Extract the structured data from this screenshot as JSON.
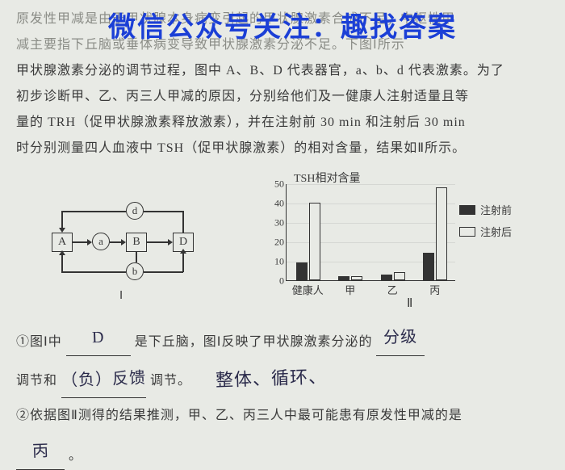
{
  "overlay": "微信公众号关注：趣找答案",
  "paragraph": {
    "l1": "原发性甲减是由于甲状腺本身病变引起的甲状腺激素合成不足；中枢性甲",
    "l2": "减主要指下丘脑或垂体病变导致甲状腺激素分泌不足。下图Ⅰ所示",
    "l3": "甲状腺激素分泌的调节过程，图中 A、B、D 代表器官，a、b、d 代表激素。为了",
    "l4": "初步诊断甲、乙、丙三人甲减的原因，分别给他们及一健康人注射适量且等",
    "l5": "量的 TRH（促甲状腺激素释放激素），并在注射前 30 min 和注射后 30 min",
    "l6": "时分别测量四人血液中 TSH（促甲状腺激素）的相对含量，结果如Ⅱ所示。"
  },
  "diagram": {
    "nodes": {
      "A": "A",
      "B": "B",
      "D": "D"
    },
    "circles": {
      "a": "a",
      "b": "b",
      "d": "d"
    },
    "roman": "Ⅰ"
  },
  "chart": {
    "title": "TSH相对含量",
    "ylim": [
      0,
      50
    ],
    "ytick_step": 10,
    "yticks": [
      0,
      10,
      20,
      30,
      40,
      50
    ],
    "categories": [
      "健康人",
      "甲",
      "乙",
      "丙"
    ],
    "pre": [
      9,
      2,
      3,
      14
    ],
    "post": [
      40,
      2,
      4,
      48
    ],
    "colors": {
      "pre": "#333333",
      "post": "#e8eae5",
      "border": "#333333",
      "bg": "#e8eae5"
    },
    "legend": {
      "pre": "注射前",
      "post": "注射后"
    },
    "roman": "Ⅱ"
  },
  "q1": {
    "prefix": "①图Ⅰ中",
    "ans1": "D",
    "mid1": "是下丘脑，图Ⅰ反映了甲状腺激素分泌的",
    "ans2": "分级",
    "line2a": "调节和",
    "ans3": "（负）反馈",
    "line2b": "调节。",
    "margin": "整体、循环、"
  },
  "q2": {
    "line": "②依据图Ⅱ测得的结果推测，甲、乙、丙三人中最可能患有原发性甲减的是",
    "ans": "丙",
    "period": "。"
  }
}
